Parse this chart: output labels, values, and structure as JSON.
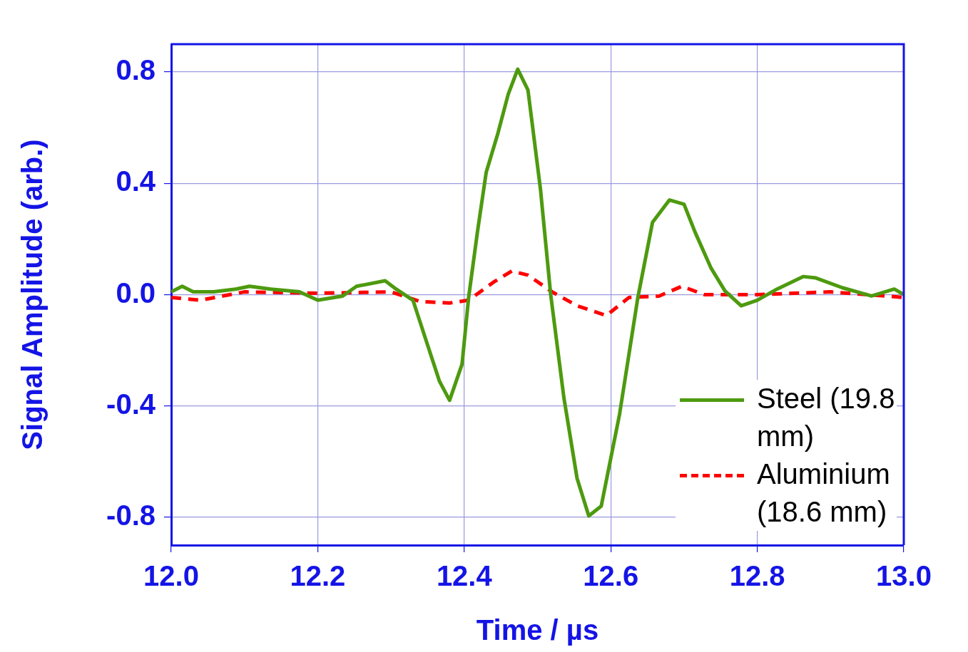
{
  "chart_data": {
    "type": "line",
    "xlabel": "Time / µs",
    "ylabel": "Signal Amplitude (arb.)",
    "xlim": [
      12.0,
      13.0
    ],
    "xticks": [
      {
        "value": 12.0,
        "label": "12.0"
      },
      {
        "value": 12.2,
        "label": "12.2"
      },
      {
        "value": 12.4,
        "label": "12.4"
      },
      {
        "value": 12.6,
        "label": "12.6"
      },
      {
        "value": 12.8,
        "label": "12.8"
      },
      {
        "value": 13.0,
        "label": "13.0"
      }
    ],
    "ylim": [
      -0.9,
      0.9
    ],
    "yticks": [
      -0.8,
      -0.4,
      {
        "value": 0,
        "label": "0.0"
      },
      0.4,
      0.8
    ],
    "grid": true,
    "legend": "bottom right",
    "marker": "none",
    "series": [
      {
        "name": "Steel (19.8 mm)",
        "color": "#4d9a0f",
        "line_style": "solid",
        "x": [
          12.0,
          12.015,
          12.03,
          12.058,
          12.088,
          12.107,
          12.136,
          12.175,
          12.2,
          12.234,
          12.253,
          12.292,
          12.307,
          12.33,
          12.348,
          12.366,
          12.38,
          12.397,
          12.406,
          12.418,
          12.43,
          12.446,
          12.46,
          12.473,
          12.487,
          12.504,
          12.518,
          12.536,
          12.554,
          12.57,
          12.587,
          12.612,
          12.637,
          12.657,
          12.68,
          12.7,
          12.715,
          12.737,
          12.756,
          12.778,
          12.8,
          12.827,
          12.863,
          12.88,
          12.916,
          12.956,
          12.987,
          13.0
        ],
        "values": [
          0.01,
          0.03,
          0.01,
          0.01,
          0.02,
          0.03,
          0.02,
          0.01,
          -0.02,
          -0.005,
          0.03,
          0.05,
          0.02,
          -0.02,
          -0.165,
          -0.31,
          -0.38,
          -0.25,
          -0.01,
          0.225,
          0.44,
          0.58,
          0.72,
          0.81,
          0.735,
          0.38,
          0.0,
          -0.37,
          -0.66,
          -0.795,
          -0.76,
          -0.43,
          -0.01,
          0.26,
          0.34,
          0.325,
          0.225,
          0.095,
          0.013,
          -0.04,
          -0.02,
          0.02,
          0.065,
          0.06,
          0.025,
          -0.005,
          0.02,
          0.0
        ]
      },
      {
        "name": "Aluminium (18.6 mm)",
        "color": "#ff0000",
        "line_style": "dashed",
        "x": [
          12.0,
          12.04,
          12.1,
          12.2,
          12.3,
          12.34,
          12.38,
          12.406,
          12.44,
          12.465,
          12.487,
          12.52,
          12.554,
          12.594,
          12.625,
          12.666,
          12.697,
          12.728,
          12.8,
          12.9,
          13.0
        ],
        "values": [
          -0.01,
          -0.02,
          0.01,
          0.005,
          0.01,
          -0.025,
          -0.03,
          -0.02,
          0.045,
          0.085,
          0.07,
          0.01,
          -0.04,
          -0.075,
          -0.01,
          -0.005,
          0.03,
          0.0,
          0.0,
          0.01,
          -0.01
        ]
      }
    ]
  }
}
